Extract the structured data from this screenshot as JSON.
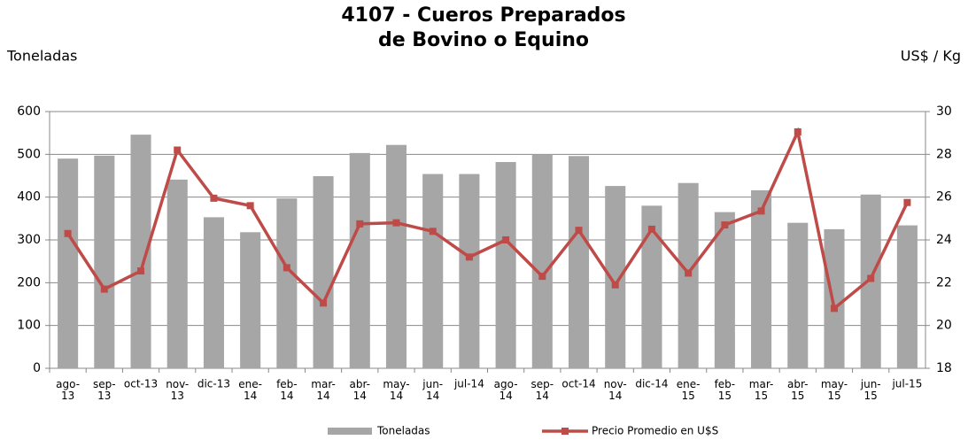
{
  "chart_data": {
    "type": "bar_line",
    "title": [
      "4107 - Cueros Preparados",
      "de Bovino o Equino"
    ],
    "y_label": "Toneladas",
    "y2_label": "US$ / Kg",
    "categories": [
      "ago-13",
      "sep-13",
      "oct-13",
      "nov-13",
      "dic-13",
      "ene-14",
      "feb-14",
      "mar-14",
      "abr-14",
      "may-14",
      "jun-14",
      "jul-14",
      "ago-14",
      "sep-14",
      "oct-14",
      "nov-14",
      "dic-14",
      "ene-15",
      "feb-15",
      "mar-15",
      "abr-15",
      "may-15",
      "jun-15",
      "jul-15"
    ],
    "series": [
      {
        "name": "Toneladas",
        "type": "bar",
        "color": "#a6a6a6",
        "values": [
          490,
          497,
          546,
          441,
          353,
          318,
          397,
          449,
          503,
          522,
          454,
          454,
          482,
          500,
          496,
          426,
          380,
          433,
          365,
          416,
          340,
          325,
          406,
          334
        ]
      },
      {
        "name": "Precio Promedio en  U$S",
        "type": "line",
        "axis": "y2",
        "color": "#be4b48",
        "values": [
          24.3,
          21.7,
          22.55,
          28.2,
          25.95,
          25.6,
          22.7,
          21.05,
          24.75,
          24.8,
          24.4,
          23.2,
          24.0,
          22.3,
          24.45,
          21.9,
          24.5,
          22.45,
          24.7,
          25.35,
          29.05,
          20.8,
          22.2,
          25.75
        ]
      }
    ],
    "ylim": [
      0,
      600
    ],
    "yticks": [
      0,
      100,
      200,
      300,
      400,
      500,
      600
    ],
    "y2lim": [
      18,
      30
    ],
    "y2ticks": [
      18,
      20,
      22,
      24,
      26,
      28,
      30
    ],
    "grid": true,
    "legend": "bottom"
  }
}
